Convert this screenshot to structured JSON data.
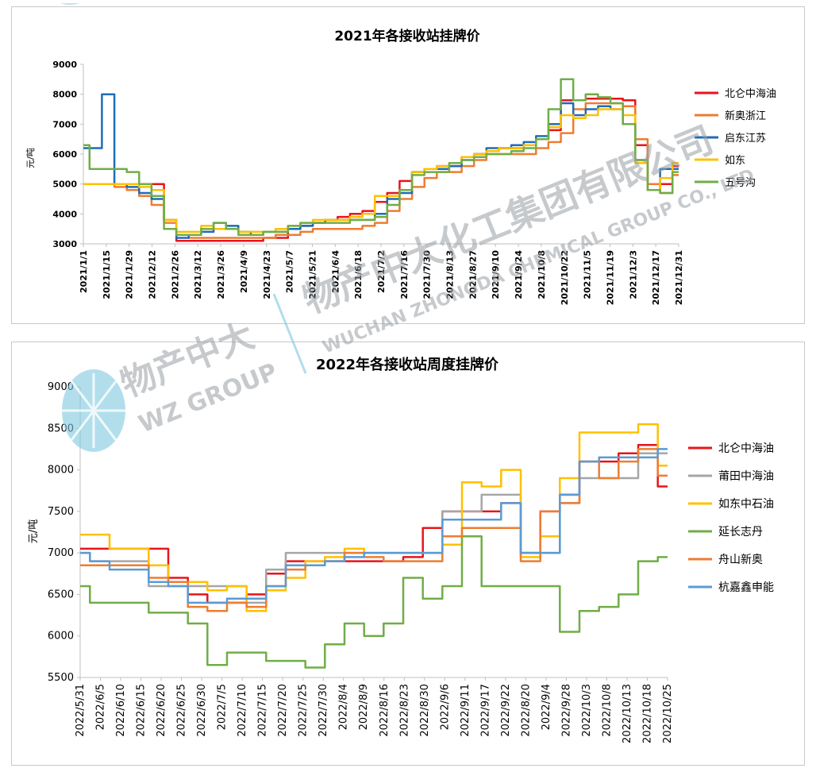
{
  "chart_data": [
    {
      "type": "line",
      "title": "2021年各接收站挂牌价",
      "ylabel": "元/吨",
      "xlabel": "",
      "ylim": [
        3000,
        9000
      ],
      "yticks": [
        3000,
        4000,
        5000,
        6000,
        7000,
        8000,
        9000
      ],
      "x_tick_labels": [
        "2021/1/1",
        "2021/1/15",
        "2021/1/29",
        "2021/2/12",
        "2021/2/26",
        "2021/3/12",
        "2021/3/26",
        "2021/4/9",
        "2021/4/23",
        "2021/5/7",
        "2021/5/21",
        "2021/6/4",
        "2021/6/18",
        "2021/7/2",
        "2021/7/16",
        "2021/7/30",
        "2021/8/13",
        "2021/8/27",
        "2021/9/10",
        "2021/9/24",
        "2021/10/8",
        "2021/10/22",
        "2021/11/5",
        "2021/11/19",
        "2021/12/3",
        "2021/12/17",
        "2021/12/31"
      ],
      "grid": false,
      "legend_position": "right",
      "series": [
        {
          "name": "北仑中海油",
          "color": "#e8141c",
          "values": [
            5000,
            5000,
            5000,
            5000,
            5000,
            5000,
            5000,
            3800,
            3100,
            3100,
            3100,
            3100,
            3100,
            3100,
            3100,
            3200,
            3200,
            3500,
            3600,
            3700,
            3800,
            3900,
            4000,
            4100,
            4400,
            4700,
            5100,
            5400,
            5500,
            5600,
            5600,
            5900,
            6000,
            6100,
            6200,
            6200,
            6300,
            6500,
            6800,
            7800,
            7800,
            7850,
            7850,
            7850,
            7800,
            6300,
            5000,
            5000,
            5600
          ]
        },
        {
          "name": "新奥浙江",
          "color": "#ed7d31",
          "values": [
            5000,
            5000,
            5000,
            4900,
            4800,
            4600,
            4300,
            3700,
            3300,
            3200,
            3200,
            3200,
            3200,
            3200,
            3200,
            3200,
            3300,
            3300,
            3400,
            3500,
            3500,
            3500,
            3500,
            3600,
            3700,
            4100,
            4500,
            4900,
            5200,
            5400,
            5400,
            5600,
            5800,
            6000,
            6000,
            6000,
            6000,
            6200,
            6400,
            6700,
            7500,
            7700,
            7700,
            7700,
            7600,
            6500,
            5000,
            4700,
            5300
          ]
        },
        {
          "name": "启东江苏",
          "color": "#1f6db5",
          "values": [
            6200,
            6200,
            8000,
            5000,
            4900,
            4700,
            4500,
            3800,
            3200,
            3300,
            3400,
            3700,
            3600,
            3400,
            3300,
            3400,
            3400,
            3500,
            3600,
            3700,
            3800,
            3800,
            3800,
            3800,
            4000,
            4500,
            4700,
            5400,
            5500,
            5500,
            5600,
            5800,
            6000,
            6200,
            6200,
            6300,
            6400,
            6600,
            7000,
            7700,
            7300,
            7500,
            7600,
            7500,
            7000,
            5800,
            4800,
            5500,
            5500
          ]
        },
        {
          "name": "如东",
          "color": "#ffc000",
          "values": [
            5000,
            5000,
            5000,
            5000,
            5000,
            4900,
            4800,
            3800,
            3400,
            3400,
            3600,
            3500,
            3500,
            3400,
            3400,
            3400,
            3500,
            3600,
            3700,
            3800,
            3800,
            3800,
            3900,
            4000,
            4600,
            4600,
            4800,
            5400,
            5500,
            5600,
            5700,
            5900,
            6000,
            6100,
            6200,
            6200,
            6300,
            6500,
            6900,
            7300,
            7200,
            7300,
            7500,
            7500,
            7300,
            5700,
            4800,
            5200,
            5700
          ]
        },
        {
          "name": "五号沟",
          "color": "#70ad47",
          "values": [
            6300,
            5500,
            5500,
            5500,
            5400,
            5000,
            4600,
            3500,
            3300,
            3300,
            3500,
            3700,
            3500,
            3300,
            3300,
            3400,
            3400,
            3600,
            3700,
            3700,
            3700,
            3700,
            3800,
            3800,
            3900,
            4300,
            4800,
            5300,
            5400,
            5400,
            5700,
            5800,
            5900,
            6000,
            6000,
            6100,
            6200,
            6500,
            7500,
            8500,
            7800,
            8000,
            7900,
            7700,
            7000,
            5800,
            4800,
            4700,
            5400
          ]
        }
      ]
    },
    {
      "type": "line",
      "title": "2022年各接收站周度挂牌价",
      "ylabel": "元/吨",
      "xlabel": "",
      "ylim": [
        5500,
        9000
      ],
      "yticks": [
        5500,
        6000,
        6500,
        7000,
        7500,
        8000,
        8500,
        9000
      ],
      "x_tick_labels": [
        "2022/5/31",
        "2022/6/5",
        "2022/6/10",
        "2022/6/15",
        "2022/6/20",
        "2022/6/25",
        "2022/6/30",
        "2022/7/5",
        "2022/7/10",
        "2022/7/15",
        "2022/7/20",
        "2022/7/25",
        "2022/7/30",
        "2022/8/4",
        "2022/8/9",
        "2022/8/16",
        "2022/8/23",
        "2022/8/30",
        "2022/9/6",
        "2022/9/11",
        "2022/9/17",
        "2022/9/22",
        "2022/8/20",
        "2022/9/4",
        "2022/9/28",
        "2022/10/3",
        "2022/10/8",
        "2022/10/13",
        "2022/10/18",
        "2022/10/25"
      ],
      "grid": false,
      "legend_position": "right",
      "series": [
        {
          "name": "北仑中海油",
          "color": "#e8141c",
          "values": [
            7050,
            7050,
            7050,
            7050,
            7050,
            6700,
            6500,
            6400,
            6400,
            6500,
            6750,
            6900,
            6900,
            6900,
            6900,
            6900,
            6900,
            6950,
            7300,
            7500,
            7500,
            7500,
            7600,
            7000,
            7500,
            7700,
            8100,
            8100,
            8200,
            8300,
            7800
          ]
        },
        {
          "name": "莆田中海油",
          "color": "#a6a6a6",
          "values": [
            7000,
            6900,
            6900,
            6900,
            6600,
            6600,
            6600,
            6600,
            6600,
            6400,
            6800,
            7000,
            7000,
            7000,
            7000,
            7000,
            7000,
            7000,
            7000,
            7500,
            7500,
            7700,
            7700,
            7000,
            7000,
            7600,
            7900,
            7900,
            7900,
            8200,
            8200
          ]
        },
        {
          "name": "如东中石油",
          "color": "#ffc000",
          "values": [
            7220,
            7220,
            7050,
            7050,
            6850,
            6650,
            6650,
            6550,
            6600,
            6300,
            6550,
            6700,
            6900,
            6950,
            7050,
            7000,
            7000,
            7000,
            7000,
            7100,
            7850,
            7800,
            8000,
            6950,
            7200,
            7900,
            8450,
            8450,
            8450,
            8550,
            8050
          ]
        },
        {
          "name": "延长志丹",
          "color": "#70ad47",
          "values": [
            6600,
            6400,
            6400,
            6400,
            6280,
            6280,
            6150,
            5650,
            5800,
            5800,
            5700,
            5700,
            5620,
            5900,
            6150,
            6000,
            6150,
            6700,
            6450,
            6600,
            7200,
            6600,
            6600,
            6600,
            6600,
            6050,
            6300,
            6350,
            6500,
            6900,
            6950
          ]
        },
        {
          "name": "舟山新奥",
          "color": "#ed7d31",
          "values": [
            6850,
            6850,
            6850,
            6850,
            6700,
            6650,
            6350,
            6300,
            6400,
            6350,
            6600,
            6800,
            6850,
            6900,
            7000,
            6950,
            6900,
            6900,
            6900,
            7200,
            7300,
            7300,
            7300,
            6900,
            7500,
            7600,
            8100,
            7900,
            8100,
            8250,
            7930
          ]
        },
        {
          "name": "杭嘉鑫申能",
          "color": "#5b9bd5",
          "values": [
            7000,
            6900,
            6800,
            6800,
            6650,
            6600,
            6400,
            6400,
            6450,
            6450,
            6600,
            6850,
            6850,
            6900,
            6950,
            7000,
            7000,
            7000,
            7000,
            7400,
            7400,
            7400,
            7600,
            7000,
            7000,
            7700,
            8100,
            8150,
            8150,
            8150,
            8250
          ]
        }
      ]
    }
  ],
  "watermark": {
    "brand_cn": "物产中大",
    "brand_en": "WZ GROUP",
    "company_cn": "物产中大化工集团有限公司",
    "company_en": "WUCHAN ZHONGDA CHEMICAL GROUP CO., LTD"
  }
}
